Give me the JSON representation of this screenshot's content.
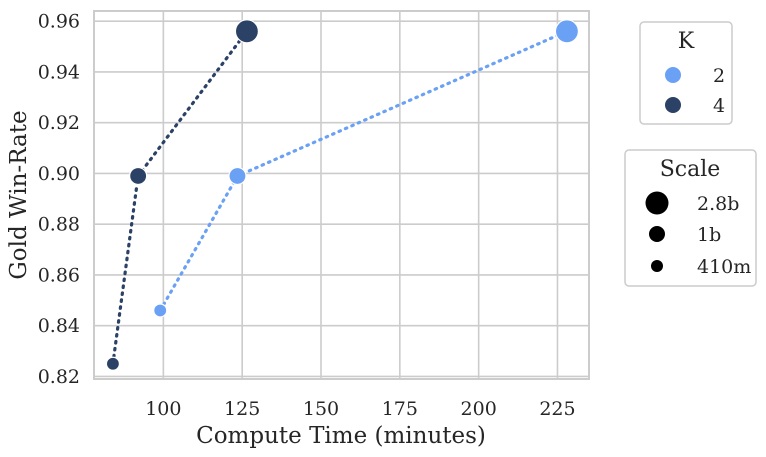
{
  "chart_data": {
    "type": "scatter",
    "xlabel": "Compute Time (minutes)",
    "ylabel": "Gold Win-Rate",
    "xlim": [
      78,
      235
    ],
    "ylim": [
      0.819,
      0.964
    ],
    "x_ticks": [
      100,
      125,
      150,
      175,
      200,
      225
    ],
    "y_ticks": [
      0.82,
      0.84,
      0.86,
      0.88,
      0.9,
      0.92,
      0.94,
      0.96
    ],
    "grid": true,
    "line_style": "dotted",
    "series": [
      {
        "name": "2",
        "color": "#6aa1f4",
        "points": [
          {
            "x": 99,
            "y": 0.846,
            "scale": "410m"
          },
          {
            "x": 123.5,
            "y": 0.899,
            "scale": "1b"
          },
          {
            "x": 228,
            "y": 0.956,
            "scale": "2.8b"
          }
        ]
      },
      {
        "name": "4",
        "color": "#2b4166",
        "points": [
          {
            "x": 84,
            "y": 0.825,
            "scale": "410m"
          },
          {
            "x": 92,
            "y": 0.899,
            "scale": "1b"
          },
          {
            "x": 126.5,
            "y": 0.956,
            "scale": "2.8b"
          }
        ]
      }
    ],
    "legend_k": {
      "title": "K",
      "placement": "right-top",
      "entries": [
        {
          "label": "2",
          "color": "#6aa1f4"
        },
        {
          "label": "4",
          "color": "#2b4166"
        }
      ]
    },
    "legend_scale": {
      "title": "Scale",
      "placement": "right-middle",
      "entries": [
        {
          "label": "2.8b",
          "size": "large"
        },
        {
          "label": "1b",
          "size": "medium"
        },
        {
          "label": "410m",
          "size": "small"
        }
      ]
    }
  }
}
